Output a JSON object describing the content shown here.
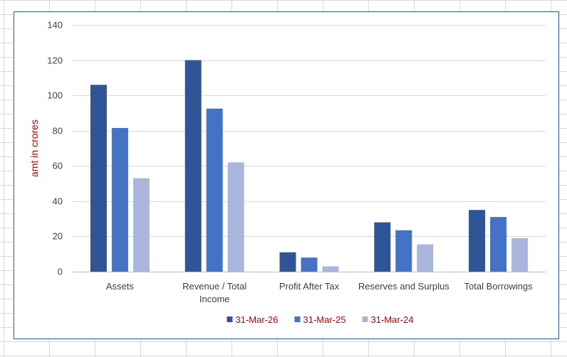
{
  "chart_data": {
    "type": "bar",
    "title": "",
    "xlabel": "",
    "ylabel": "amt in crores",
    "ylim": [
      0,
      140
    ],
    "y_ticks": [
      0,
      20,
      40,
      60,
      80,
      100,
      120,
      140
    ],
    "grid": true,
    "legend_position": "bottom",
    "categories": [
      [
        "Assets"
      ],
      [
        "Revenue / Total",
        "Income"
      ],
      [
        "Profit After Tax"
      ],
      [
        "Reserves and Surplus"
      ],
      [
        "Total Borrowings"
      ]
    ],
    "series": [
      {
        "name": "31-Mar-26",
        "color": "#2f5597",
        "values": [
          106,
          120,
          11,
          28,
          35
        ]
      },
      {
        "name": "31-Mar-25",
        "color": "#4472c4",
        "values": [
          81.5,
          92.5,
          8,
          23.5,
          31
        ]
      },
      {
        "name": "31-Mar-24",
        "color": "#aab6db",
        "values": [
          53,
          62,
          3,
          15.5,
          19
        ]
      }
    ],
    "colors": {
      "axis_title": "#c00000",
      "legend_text": "#c00000",
      "tick_text": "#404040",
      "gridline": "#d9d9d9"
    }
  }
}
